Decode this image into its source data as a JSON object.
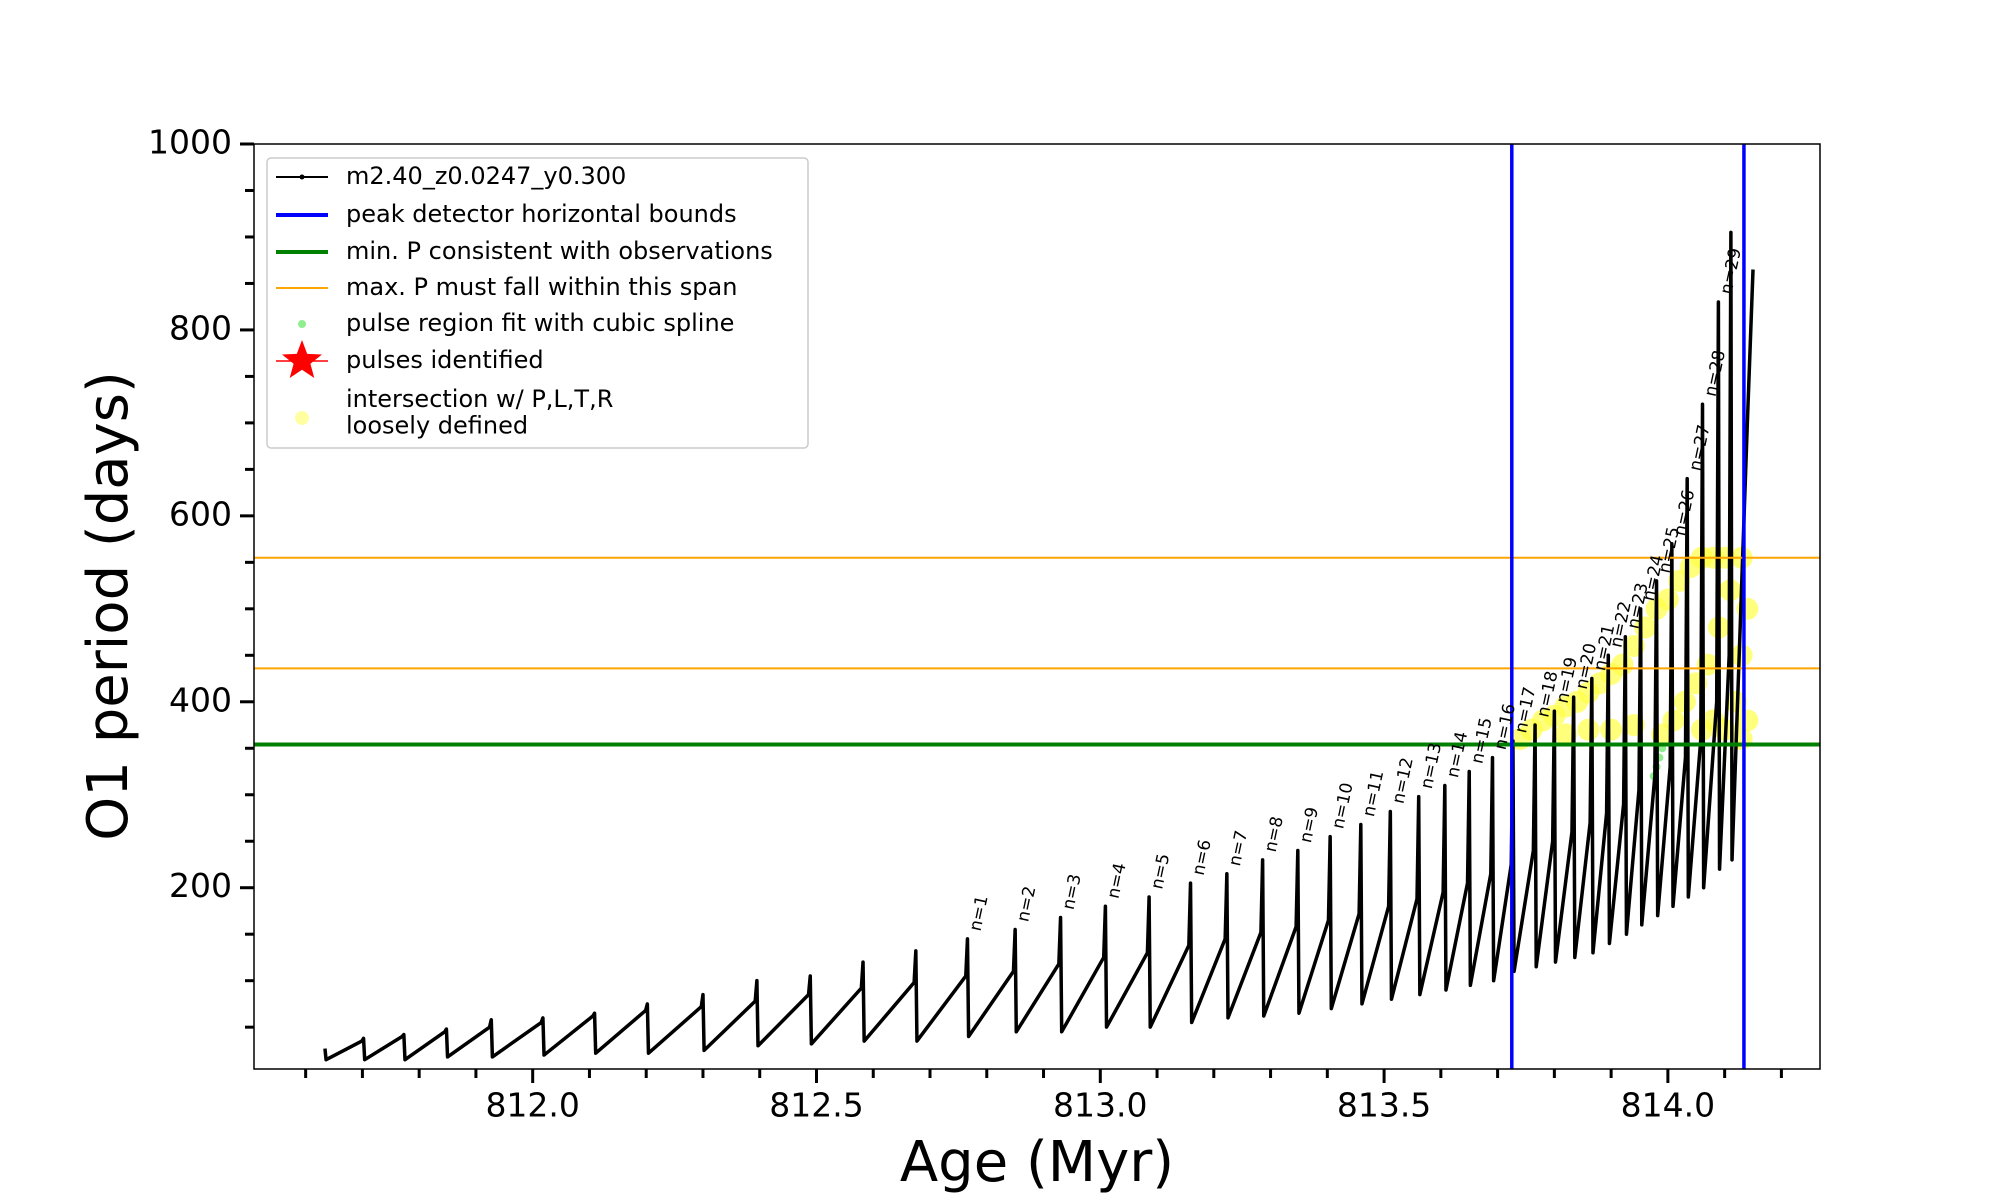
{
  "chart_data": {
    "type": "line",
    "xlabel": "Age (Myr)",
    "ylabel": "O1 period (days)",
    "xlim": [
      811.509,
      814.268
    ],
    "ylim": [
      5,
      1000
    ],
    "xticks": [
      {
        "value": 812,
        "label": "812.0"
      },
      {
        "value": 812.5,
        "label": "812.5"
      },
      {
        "value": 813,
        "label": "813.0"
      },
      {
        "value": 813.5,
        "label": "813.5"
      },
      {
        "value": 814,
        "label": "814.0"
      }
    ],
    "xminorticks": [
      811.6,
      811.7,
      811.8,
      811.9,
      812.1,
      812.2,
      812.3,
      812.4,
      812.6,
      812.7,
      812.8,
      812.9,
      813.1,
      813.2,
      813.3,
      813.4,
      813.6,
      813.7,
      813.8,
      813.9,
      814.1,
      814.2
    ],
    "yticks": [
      200,
      400,
      600,
      800,
      1000
    ],
    "yminorticks": [
      50,
      100,
      150,
      250,
      300,
      350,
      450,
      500,
      550,
      650,
      700,
      750,
      850,
      900,
      950
    ],
    "legend": "upper left",
    "series": [
      {
        "name": "m2.40_z0.0247_y0.300",
        "color": "#000000",
        "x": [
          811.634,
          811.636,
          811.699,
          811.702,
          811.704,
          811.77,
          811.773,
          811.775,
          811.845,
          811.848,
          811.85,
          811.924,
          811.927,
          811.929,
          812.015,
          812.018,
          812.02,
          812.106,
          812.109,
          812.111,
          812.199,
          812.202,
          812.204,
          812.297,
          812.3,
          812.302,
          812.392,
          812.395,
          812.397,
          812.486,
          812.489,
          812.491,
          812.579,
          812.582,
          812.584,
          812.672,
          812.675,
          812.677,
          812.763,
          812.766,
          812.768,
          812.847,
          812.85,
          812.852,
          812.927,
          812.93,
          812.932,
          813.006,
          813.009,
          813.011,
          813.083,
          813.086,
          813.088,
          813.156,
          813.159,
          813.161,
          813.22,
          813.223,
          813.225,
          813.283,
          813.286,
          813.288,
          813.345,
          813.348,
          813.35,
          813.402,
          813.405,
          813.407,
          813.456,
          813.459,
          813.461,
          813.508,
          813.511,
          813.513,
          813.558,
          813.561,
          813.563,
          813.604,
          813.607,
          813.609,
          813.647,
          813.65,
          813.652,
          813.688,
          813.691,
          813.693,
          813.724,
          813.727,
          813.729,
          813.763,
          813.766,
          813.768,
          813.797,
          813.8,
          813.802,
          813.831,
          813.834,
          813.836,
          813.863,
          813.866,
          813.868,
          813.892,
          813.895,
          813.897,
          813.922,
          813.925,
          813.927,
          813.949,
          813.952,
          813.954,
          813.977,
          813.98,
          813.982,
          814.004,
          814.007,
          814.009,
          814.031,
          814.034,
          814.036,
          814.058,
          814.061,
          814.063,
          814.086,
          814.089,
          814.091,
          814.108,
          814.111,
          814.113,
          814.14,
          814.15
        ],
        "values": [
          27,
          15,
          35,
          38,
          15,
          40,
          42,
          15,
          45,
          48,
          18,
          50,
          58,
          18,
          55,
          60,
          20,
          62,
          65,
          22,
          68,
          75,
          22,
          72,
          85,
          25,
          78,
          100,
          30,
          85,
          105,
          32,
          92,
          120,
          35,
          98,
          132,
          35,
          105,
          145,
          40,
          110,
          155,
          45,
          118,
          168,
          45,
          125,
          180,
          50,
          130,
          190,
          50,
          138,
          205,
          55,
          145,
          215,
          60,
          152,
          230,
          62,
          158,
          240,
          65,
          165,
          255,
          70,
          172,
          268,
          75,
          180,
          282,
          80,
          188,
          298,
          85,
          195,
          310,
          90,
          205,
          325,
          95,
          215,
          340,
          100,
          225,
          358,
          110,
          240,
          375,
          115,
          250,
          390,
          120,
          260,
          405,
          125,
          270,
          425,
          130,
          280,
          450,
          140,
          290,
          470,
          150,
          305,
          500,
          160,
          320,
          530,
          170,
          330,
          570,
          180,
          340,
          640,
          190,
          360,
          720,
          200,
          400,
          830,
          220,
          450,
          905,
          230,
          700,
          865
        ]
      },
      {
        "name": "peak detector horizontal bounds",
        "color": "#0000ff",
        "vlines": [
          813.725,
          814.134
        ]
      },
      {
        "name": "min. P consistent with observations",
        "color": "#008000",
        "hlines": [
          354
        ]
      },
      {
        "name": "max. P must fall within this span",
        "color": "#ffa500",
        "hlines": [
          436,
          555
        ]
      },
      {
        "name": "pulse region fit with cubic spline",
        "color": "#90ee90",
        "marker": "dot",
        "x": [
          813.975,
          813.98,
          813.985,
          813.99
        ],
        "values": [
          320,
          330,
          340,
          350
        ]
      },
      {
        "name": "pulses identified",
        "color": "#ff0000",
        "marker": "star",
        "x": [],
        "values": []
      },
      {
        "name": "intersection w/ P,L,T,R\nloosely defined",
        "color": "#ffff44",
        "marker": "blob",
        "x": [
          813.74,
          813.76,
          813.78,
          813.8,
          813.82,
          813.84,
          813.86,
          813.88,
          813.9,
          813.92,
          813.94,
          813.96,
          813.98,
          814.0,
          814.02,
          814.04,
          814.06,
          814.08,
          814.1,
          814.13,
          813.99,
          814.01,
          814.03,
          814.05,
          814.07,
          814.09,
          814.11,
          814.12,
          814.13,
          814.14,
          814.14,
          814.13,
          814.1,
          814.08,
          814.06,
          813.9,
          813.94,
          813.86,
          813.82
        ],
        "values": [
          360,
          370,
          380,
          385,
          395,
          400,
          410,
          420,
          430,
          440,
          460,
          480,
          500,
          510,
          530,
          545,
          555,
          555,
          555,
          555,
          365,
          380,
          400,
          420,
          440,
          480,
          520,
          400,
          450,
          380,
          500,
          360,
          370,
          380,
          370,
          370,
          375,
          370,
          365
        ]
      }
    ],
    "annotations": [
      {
        "text": "n=1",
        "x": 812.766,
        "y": 145
      },
      {
        "text": "n=2",
        "x": 812.85,
        "y": 155
      },
      {
        "text": "n=3",
        "x": 812.93,
        "y": 168
      },
      {
        "text": "n=4",
        "x": 813.009,
        "y": 180
      },
      {
        "text": "n=5",
        "x": 813.086,
        "y": 190
      },
      {
        "text": "n=6",
        "x": 813.159,
        "y": 205
      },
      {
        "text": "n=7",
        "x": 813.223,
        "y": 215
      },
      {
        "text": "n=8",
        "x": 813.286,
        "y": 230
      },
      {
        "text": "n=9",
        "x": 813.348,
        "y": 240
      },
      {
        "text": "n=10",
        "x": 813.405,
        "y": 255
      },
      {
        "text": "n=11",
        "x": 813.459,
        "y": 268
      },
      {
        "text": "n=12",
        "x": 813.511,
        "y": 282
      },
      {
        "text": "n=13",
        "x": 813.561,
        "y": 298
      },
      {
        "text": "n=14",
        "x": 813.607,
        "y": 310
      },
      {
        "text": "n=15",
        "x": 813.65,
        "y": 325
      },
      {
        "text": "n=16",
        "x": 813.691,
        "y": 340
      },
      {
        "text": "n=17",
        "x": 813.727,
        "y": 358
      },
      {
        "text": "n=18",
        "x": 813.766,
        "y": 375
      },
      {
        "text": "n=19",
        "x": 813.8,
        "y": 390
      },
      {
        "text": "n=20",
        "x": 813.834,
        "y": 405
      },
      {
        "text": "n=21",
        "x": 813.866,
        "y": 425
      },
      {
        "text": "n=22",
        "x": 813.895,
        "y": 450
      },
      {
        "text": "n=23",
        "x": 813.925,
        "y": 470
      },
      {
        "text": "n=24",
        "x": 813.952,
        "y": 500
      },
      {
        "text": "n=25",
        "x": 813.98,
        "y": 530
      },
      {
        "text": "n=26",
        "x": 814.007,
        "y": 570
      },
      {
        "text": "n=27",
        "x": 814.034,
        "y": 640
      },
      {
        "text": "n=28",
        "x": 814.061,
        "y": 720
      },
      {
        "text": "n=29",
        "x": 814.089,
        "y": 830
      }
    ]
  }
}
